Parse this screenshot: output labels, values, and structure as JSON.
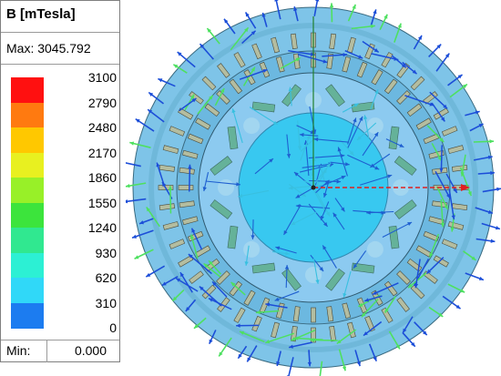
{
  "legend": {
    "title": "B [mTesla]",
    "max_text": "Max: 3045.792",
    "min_label": "Min:",
    "min_value": "0.000",
    "levels": [
      {
        "value": "3100",
        "color": "#ff1010"
      },
      {
        "value": "2790",
        "color": "#ff7a10"
      },
      {
        "value": "2480",
        "color": "#ffc800"
      },
      {
        "value": "2170",
        "color": "#e8f020"
      },
      {
        "value": "1860",
        "color": "#98f028"
      },
      {
        "value": "1550",
        "color": "#3ce43c"
      },
      {
        "value": "1240",
        "color": "#30e890"
      },
      {
        "value": "930",
        "color": "#2cf0d4"
      },
      {
        "value": "620",
        "color": "#30d8f8"
      },
      {
        "value": "310",
        "color": "#1c7cf0"
      },
      {
        "value": "0",
        "color": "#1010f0"
      }
    ]
  },
  "colors": {
    "stator_fill": "#7ec4e8",
    "rotor_fill": "#8ccaf0",
    "core_fill": "#38c8f0",
    "slot_fill": "#b4bda0",
    "arrow_blue": "#1c4ed8",
    "arrow_green": "#4ee060",
    "axis_x": "#e02020",
    "axis_y": "#208030"
  }
}
